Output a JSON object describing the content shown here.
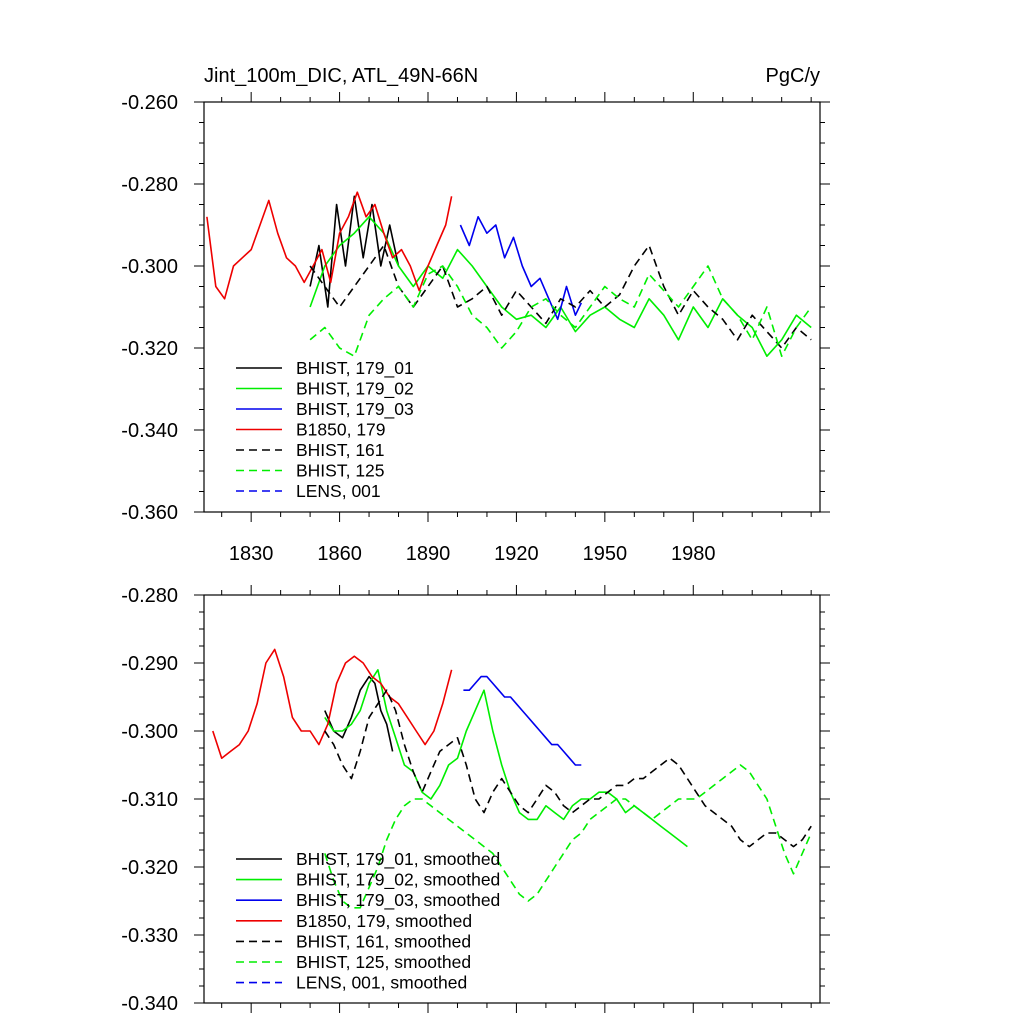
{
  "figure": {
    "title_left": "Jint_100m_DIC, ATL_49N-66N",
    "title_right": "PgC/y"
  },
  "chart_data": [
    {
      "type": "line",
      "panel": "top",
      "title": "Jint_100m_DIC, ATL_49N-66N",
      "units_label": "PgC/y",
      "xlim": [
        1814,
        2023
      ],
      "ylim": [
        -0.36,
        -0.26
      ],
      "xticks": [
        1830,
        1860,
        1890,
        1920,
        1950,
        1980
      ],
      "xtick_labels": [
        "1830",
        "1860",
        "1890",
        "1920",
        "1950",
        "1980"
      ],
      "yticks": [
        -0.36,
        -0.34,
        -0.32,
        -0.3,
        -0.28,
        -0.26
      ],
      "ytick_labels": [
        "-0.360",
        "-0.340",
        "-0.320",
        "-0.300",
        "-0.280",
        "-0.260"
      ],
      "legend_position": "bottom-left",
      "series": [
        {
          "name": "BHIST, 179_01",
          "color": "#000000",
          "dash": "solid",
          "x": [
            1850,
            1853,
            1856,
            1859,
            1862,
            1865,
            1868,
            1871,
            1874,
            1877,
            1880
          ],
          "y": [
            -0.305,
            -0.295,
            -0.31,
            -0.285,
            -0.3,
            -0.283,
            -0.298,
            -0.285,
            -0.3,
            -0.29,
            -0.3
          ]
        },
        {
          "name": "BHIST, 179_02",
          "color": "#00ee00",
          "dash": "solid",
          "x": [
            1850,
            1855,
            1860,
            1865,
            1870,
            1875,
            1880,
            1885,
            1890,
            1895,
            1900,
            1905,
            1910,
            1915,
            1920,
            1925,
            1930,
            1935,
            1940,
            1945,
            1950,
            1955,
            1960,
            1965,
            1970,
            1975,
            1980,
            1985,
            1990,
            1995,
            2000,
            2005,
            2010,
            2015,
            2020
          ],
          "y": [
            -0.31,
            -0.3,
            -0.295,
            -0.292,
            -0.288,
            -0.292,
            -0.3,
            -0.305,
            -0.3,
            -0.303,
            -0.296,
            -0.3,
            -0.305,
            -0.31,
            -0.313,
            -0.312,
            -0.315,
            -0.31,
            -0.316,
            -0.312,
            -0.31,
            -0.313,
            -0.315,
            -0.308,
            -0.312,
            -0.318,
            -0.31,
            -0.315,
            -0.308,
            -0.312,
            -0.315,
            -0.322,
            -0.318,
            -0.312,
            -0.315
          ]
        },
        {
          "name": "BHIST, 179_03",
          "color": "#0000ee",
          "dash": "solid",
          "x": [
            1901,
            1904,
            1907,
            1910,
            1913,
            1916,
            1919,
            1922,
            1925,
            1928,
            1931,
            1934,
            1937,
            1940,
            1942
          ],
          "y": [
            -0.29,
            -0.295,
            -0.288,
            -0.292,
            -0.29,
            -0.298,
            -0.293,
            -0.3,
            -0.305,
            -0.303,
            -0.308,
            -0.313,
            -0.305,
            -0.312,
            -0.309
          ]
        },
        {
          "name": "B1850, 179",
          "color": "#ee0000",
          "dash": "solid",
          "x": [
            1815,
            1818,
            1821,
            1824,
            1827,
            1830,
            1833,
            1836,
            1839,
            1842,
            1845,
            1848,
            1851,
            1854,
            1857,
            1860,
            1863,
            1866,
            1869,
            1872,
            1875,
            1878,
            1881,
            1884,
            1887,
            1890,
            1893,
            1896,
            1898
          ],
          "y": [
            -0.288,
            -0.305,
            -0.308,
            -0.3,
            -0.298,
            -0.296,
            -0.29,
            -0.284,
            -0.292,
            -0.298,
            -0.3,
            -0.304,
            -0.3,
            -0.296,
            -0.304,
            -0.292,
            -0.288,
            -0.282,
            -0.288,
            -0.285,
            -0.292,
            -0.298,
            -0.296,
            -0.3,
            -0.306,
            -0.3,
            -0.295,
            -0.29,
            -0.283
          ]
        },
        {
          "name": "BHIST, 161",
          "color": "#000000",
          "dash": "dashed",
          "x": [
            1850,
            1855,
            1860,
            1865,
            1870,
            1875,
            1880,
            1885,
            1890,
            1895,
            1900,
            1905,
            1910,
            1915,
            1920,
            1925,
            1930,
            1935,
            1940,
            1945,
            1950,
            1955,
            1960,
            1965,
            1970,
            1975,
            1980,
            1985,
            1990,
            1995,
            2000,
            2005,
            2010,
            2015,
            2020
          ],
          "y": [
            -0.3,
            -0.305,
            -0.31,
            -0.305,
            -0.3,
            -0.295,
            -0.305,
            -0.31,
            -0.305,
            -0.3,
            -0.31,
            -0.308,
            -0.305,
            -0.312,
            -0.306,
            -0.31,
            -0.314,
            -0.308,
            -0.31,
            -0.306,
            -0.31,
            -0.307,
            -0.3,
            -0.295,
            -0.305,
            -0.312,
            -0.306,
            -0.31,
            -0.313,
            -0.318,
            -0.312,
            -0.316,
            -0.32,
            -0.315,
            -0.318
          ]
        },
        {
          "name": "BHIST, 125",
          "color": "#00ee00",
          "dash": "dashed",
          "x": [
            1850,
            1855,
            1860,
            1865,
            1870,
            1875,
            1880,
            1885,
            1890,
            1895,
            1900,
            1905,
            1910,
            1915,
            1920,
            1925,
            1930,
            1935,
            1940,
            1945,
            1950,
            1955,
            1960,
            1965,
            1970,
            1975,
            1980,
            1985,
            1990,
            1995,
            2000,
            2005,
            2010,
            2015,
            2020
          ],
          "y": [
            -0.318,
            -0.315,
            -0.32,
            -0.322,
            -0.312,
            -0.308,
            -0.305,
            -0.31,
            -0.302,
            -0.3,
            -0.305,
            -0.312,
            -0.315,
            -0.32,
            -0.316,
            -0.31,
            -0.308,
            -0.312,
            -0.315,
            -0.31,
            -0.305,
            -0.308,
            -0.31,
            -0.302,
            -0.306,
            -0.31,
            -0.305,
            -0.3,
            -0.308,
            -0.312,
            -0.318,
            -0.31,
            -0.322,
            -0.315,
            -0.31
          ]
        },
        {
          "name": "LENS, 001",
          "color": "#0000ee",
          "dash": "dashed",
          "x": [],
          "y": []
        }
      ]
    },
    {
      "type": "line",
      "panel": "bottom",
      "title": "",
      "xlim": [
        1814,
        2023
      ],
      "ylim": [
        -0.34,
        -0.28
      ],
      "xticks": [
        1830,
        1860,
        1890,
        1920,
        1950,
        1980
      ],
      "yticks": [
        -0.34,
        -0.33,
        -0.32,
        -0.31,
        -0.3,
        -0.29,
        -0.28
      ],
      "ytick_labels": [
        "-0.340",
        "-0.330",
        "-0.320",
        "-0.310",
        "-0.300",
        "-0.290",
        "-0.280"
      ],
      "legend_position": "bottom-left",
      "series": [
        {
          "name": "BHIST, 179_01, smoothed",
          "color": "#000000",
          "dash": "solid",
          "x": [
            1855,
            1858,
            1861,
            1864,
            1867,
            1870,
            1872,
            1874,
            1876,
            1878
          ],
          "y": [
            -0.297,
            -0.3,
            -0.301,
            -0.298,
            -0.294,
            -0.292,
            -0.293,
            -0.297,
            -0.299,
            -0.303
          ]
        },
        {
          "name": "BHIST, 179_02, smoothed",
          "color": "#00ee00",
          "dash": "solid",
          "x": [
            1855,
            1858,
            1861,
            1864,
            1867,
            1870,
            1873,
            1876,
            1879,
            1882,
            1885,
            1888,
            1891,
            1894,
            1897,
            1900,
            1903,
            1906,
            1909,
            1912,
            1915,
            1918,
            1921,
            1924,
            1927,
            1930,
            1933,
            1936,
            1939,
            1942,
            1945,
            1948,
            1951,
            1954,
            1957,
            1960,
            1963,
            1966,
            1969,
            1972,
            1975,
            1978
          ],
          "y": [
            -0.298,
            -0.3,
            -0.3,
            -0.299,
            -0.297,
            -0.293,
            -0.291,
            -0.297,
            -0.301,
            -0.305,
            -0.306,
            -0.309,
            -0.31,
            -0.308,
            -0.305,
            -0.304,
            -0.3,
            -0.297,
            -0.294,
            -0.3,
            -0.305,
            -0.309,
            -0.312,
            -0.313,
            -0.313,
            -0.311,
            -0.312,
            -0.313,
            -0.311,
            -0.31,
            -0.31,
            -0.309,
            -0.309,
            -0.31,
            -0.312,
            -0.311,
            -0.312,
            -0.313,
            -0.314,
            -0.315,
            -0.316,
            -0.317
          ]
        },
        {
          "name": "BHIST, 179_03, smoothed",
          "color": "#0000ee",
          "dash": "solid",
          "x": [
            1902,
            1904,
            1906,
            1908,
            1910,
            1912,
            1914,
            1916,
            1918,
            1920,
            1922,
            1924,
            1926,
            1928,
            1930,
            1932,
            1934,
            1936,
            1938,
            1940,
            1942
          ],
          "y": [
            -0.294,
            -0.294,
            -0.293,
            -0.292,
            -0.292,
            -0.293,
            -0.294,
            -0.295,
            -0.295,
            -0.296,
            -0.297,
            -0.298,
            -0.299,
            -0.3,
            -0.301,
            -0.302,
            -0.302,
            -0.303,
            -0.304,
            -0.305,
            -0.305
          ]
        },
        {
          "name": "B1850, 179, smoothed",
          "color": "#ee0000",
          "dash": "solid",
          "x": [
            1817,
            1820,
            1823,
            1826,
            1829,
            1832,
            1835,
            1838,
            1841,
            1844,
            1847,
            1850,
            1853,
            1856,
            1859,
            1862,
            1865,
            1868,
            1871,
            1874,
            1877,
            1880,
            1883,
            1886,
            1889,
            1892,
            1895,
            1898
          ],
          "y": [
            -0.3,
            -0.304,
            -0.303,
            -0.302,
            -0.3,
            -0.296,
            -0.29,
            -0.288,
            -0.292,
            -0.298,
            -0.3,
            -0.3,
            -0.302,
            -0.299,
            -0.293,
            -0.29,
            -0.289,
            -0.29,
            -0.292,
            -0.293,
            -0.295,
            -0.296,
            -0.298,
            -0.3,
            -0.302,
            -0.3,
            -0.296,
            -0.291
          ]
        },
        {
          "name": "BHIST, 161, smoothed",
          "color": "#000000",
          "dash": "dashed",
          "x": [
            1855,
            1858,
            1861,
            1864,
            1867,
            1870,
            1873,
            1876,
            1879,
            1882,
            1885,
            1888,
            1891,
            1894,
            1897,
            1900,
            1903,
            1906,
            1909,
            1912,
            1915,
            1918,
            1921,
            1924,
            1927,
            1930,
            1933,
            1936,
            1939,
            1942,
            1945,
            1948,
            1951,
            1954,
            1957,
            1960,
            1963,
            1966,
            1969,
            1972,
            1975,
            1978,
            1981,
            1984,
            1987,
            1990,
            1993,
            1996,
            1999,
            2002,
            2005,
            2008,
            2011,
            2014,
            2017,
            2020
          ],
          "y": [
            -0.3,
            -0.302,
            -0.305,
            -0.307,
            -0.303,
            -0.298,
            -0.296,
            -0.294,
            -0.297,
            -0.302,
            -0.306,
            -0.309,
            -0.306,
            -0.303,
            -0.302,
            -0.301,
            -0.305,
            -0.31,
            -0.312,
            -0.309,
            -0.307,
            -0.309,
            -0.311,
            -0.312,
            -0.31,
            -0.308,
            -0.309,
            -0.311,
            -0.312,
            -0.311,
            -0.31,
            -0.31,
            -0.309,
            -0.308,
            -0.308,
            -0.307,
            -0.307,
            -0.306,
            -0.305,
            -0.304,
            -0.305,
            -0.307,
            -0.309,
            -0.311,
            -0.312,
            -0.313,
            -0.314,
            -0.316,
            -0.317,
            -0.316,
            -0.315,
            -0.315,
            -0.316,
            -0.317,
            -0.316,
            -0.314
          ]
        },
        {
          "name": "BHIST, 125, smoothed",
          "color": "#00ee00",
          "dash": "dashed",
          "x": [
            1855,
            1858,
            1861,
            1864,
            1867,
            1870,
            1873,
            1876,
            1879,
            1882,
            1885,
            1888,
            1891,
            1894,
            1897,
            1900,
            1903,
            1906,
            1909,
            1912,
            1915,
            1918,
            1921,
            1924,
            1927,
            1930,
            1933,
            1936,
            1939,
            1942,
            1945,
            1948,
            1951,
            1954,
            1957,
            1960,
            1963,
            1966,
            1969,
            1972,
            1975,
            1978,
            1981,
            1984,
            1987,
            1990,
            1993,
            1996,
            1999,
            2002,
            2005,
            2008,
            2011,
            2014,
            2017,
            2020
          ],
          "y": [
            -0.318,
            -0.322,
            -0.325,
            -0.326,
            -0.326,
            -0.323,
            -0.32,
            -0.316,
            -0.313,
            -0.311,
            -0.31,
            -0.31,
            -0.311,
            -0.312,
            -0.313,
            -0.314,
            -0.315,
            -0.316,
            -0.317,
            -0.318,
            -0.32,
            -0.322,
            -0.324,
            -0.325,
            -0.324,
            -0.322,
            -0.32,
            -0.318,
            -0.316,
            -0.315,
            -0.313,
            -0.312,
            -0.311,
            -0.31,
            -0.31,
            -0.311,
            -0.312,
            -0.313,
            -0.312,
            -0.311,
            -0.31,
            -0.31,
            -0.31,
            -0.309,
            -0.308,
            -0.307,
            -0.306,
            -0.305,
            -0.306,
            -0.308,
            -0.31,
            -0.314,
            -0.318,
            -0.321,
            -0.318,
            -0.315
          ]
        },
        {
          "name": "LENS, 001, smoothed",
          "color": "#0000ee",
          "dash": "dashed",
          "x": [],
          "y": []
        }
      ]
    }
  ]
}
